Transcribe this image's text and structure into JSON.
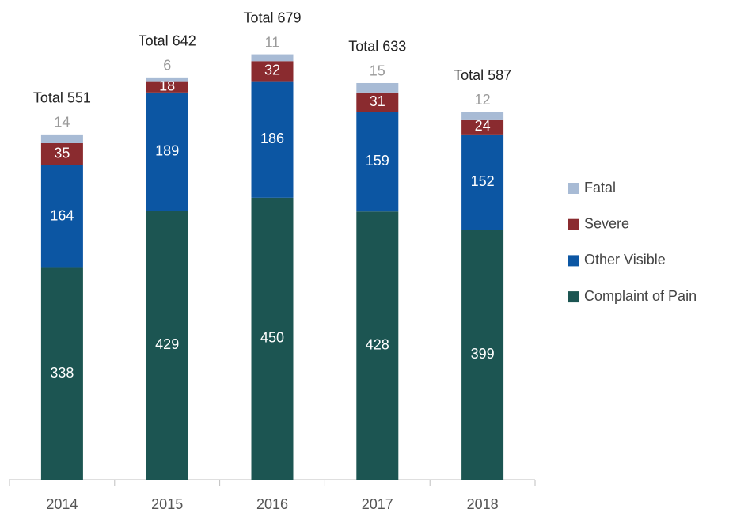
{
  "chart_data": {
    "type": "stacked_bar",
    "categories": [
      "2014",
      "2015",
      "2016",
      "2017",
      "2018"
    ],
    "series": [
      {
        "name": "Complaint of Pain",
        "color": "#1c5552",
        "values": [
          338,
          429,
          450,
          428,
          399
        ]
      },
      {
        "name": "Other Visible",
        "color": "#0c56a3",
        "values": [
          164,
          189,
          186,
          159,
          152
        ]
      },
      {
        "name": "Severe",
        "color": "#8a2b2f",
        "values": [
          35,
          18,
          32,
          31,
          24
        ]
      },
      {
        "name": "Fatal",
        "color": "#a8bbd5",
        "values": [
          14,
          6,
          11,
          15,
          12
        ]
      }
    ],
    "totals": [
      551,
      642,
      679,
      633,
      587
    ],
    "total_labels": [
      "Total 551",
      "Total 642",
      "Total 679",
      "Total 633",
      "Total 587"
    ],
    "legend": "right"
  }
}
